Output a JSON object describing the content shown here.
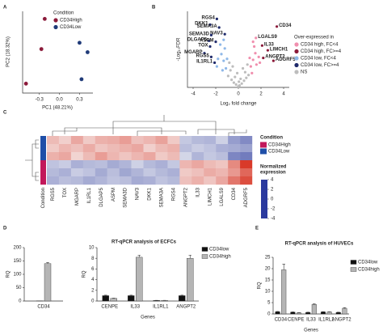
{
  "chart_data": [
    {
      "type": "scatter",
      "panel": "A",
      "xlabel": "PC1 (48.21%)",
      "ylabel": "PC2 (18.32%)",
      "legend_title": "Condition",
      "xlim": [
        -0.55,
        0.5
      ],
      "ylim": [
        -0.6,
        0.7
      ],
      "xticks": [
        -0.3,
        {
          "value": 0,
          "label": "0.0"
        },
        0.3
      ],
      "series": [
        {
          "name": "CD34High",
          "color": "#8b1a3a",
          "x": [
            -0.5,
            -0.22,
            -0.27
          ],
          "values": [
            -0.45,
            0.58,
            0.1
          ]
        },
        {
          "name": "CD34Low",
          "color": "#1f3a78",
          "x": [
            0.3,
            0.42,
            0.33
          ],
          "values": [
            0.2,
            0.05,
            -0.38
          ]
        }
      ]
    },
    {
      "type": "scatter",
      "panel": "B",
      "xlabel": "Log₂ fold change",
      "ylabel": "-Log₁₀FDR",
      "legend_title": "Over-expressed in",
      "xlim": [
        -4.5,
        4.5
      ],
      "ylim": [
        0,
        8
      ],
      "xticks": [
        -4,
        -2,
        0,
        2,
        4
      ],
      "series": [
        {
          "name": "CD34 high, FC<4",
          "color": "#f08fae",
          "x": [
            1.1,
            1.3,
            1.5,
            1.2,
            1.8,
            1.4,
            1.0,
            1.6,
            1.9,
            1.3,
            1.55
          ],
          "values": [
            2.2,
            2.9,
            3.6,
            1.5,
            3.2,
            4.3,
            3.1,
            2.4,
            2.6,
            4.8,
            5.2
          ],
          "labels": [
            null,
            null,
            null,
            null,
            null,
            null,
            null,
            null,
            null,
            null,
            "LGALS9"
          ]
        },
        {
          "name": "CD34 high, FC>=4",
          "color": "#8b1a3a",
          "x": [
            3.4,
            2.1,
            2.6,
            2.2,
            3.1
          ],
          "values": [
            6.4,
            4.4,
            3.9,
            3.1,
            2.8
          ],
          "labels": [
            "CD34",
            "IL33",
            "LIMCH1",
            "ANGPT2",
            "ADGRF5"
          ]
        },
        {
          "name": "CD34 low, FC<4",
          "color": "#8fb8e8",
          "x": [
            -1.1,
            -1.3,
            -1.5,
            -1.2,
            -1.8,
            -1.4,
            -1.0,
            -1.6,
            -1.9,
            -1.3
          ],
          "values": [
            2.0,
            2.8,
            3.5,
            4.1,
            3.0,
            1.8,
            3.0,
            4.5,
            2.2,
            5.0
          ],
          "labels": [
            null,
            null,
            null,
            null,
            null,
            null,
            null,
            null,
            null,
            null
          ]
        },
        {
          "name": "CD34 low, FC>=4",
          "color": "#1f2a6b",
          "x": [
            -1.9,
            -2.5,
            -1.7,
            -1.2,
            -2.4,
            -2.6,
            -2.0,
            -2.5,
            -3.0,
            -2.4,
            -2.1
          ],
          "values": [
            7.2,
            6.6,
            6.3,
            5.6,
            5.5,
            4.9,
            4.8,
            4.3,
            3.6,
            3.2,
            2.6
          ],
          "labels": [
            "RGS4",
            "DKK1",
            "SEMA3A",
            "NAV3",
            "SEMA3D",
            "DLGAP5",
            "ASPM",
            "TOX",
            "MGARP",
            "RGS5",
            "IL1RL1"
          ]
        },
        {
          "name": "NS",
          "color": "#bdbdbd",
          "x": [
            -0.9,
            -0.6,
            -0.4,
            -0.2,
            0,
            0.1,
            0.3,
            0.5,
            0.7,
            0.9,
            -0.7,
            -0.3,
            0.2,
            0.6,
            -0.5,
            0.4,
            -0.1,
            0.8,
            -0.8,
            0.05
          ],
          "values": [
            1.2,
            0.8,
            0.5,
            0.3,
            0.1,
            0.2,
            0.4,
            0.7,
            1.0,
            1.3,
            1.8,
            1.1,
            0.9,
            1.6,
            2.2,
            2.0,
            1.5,
            2.4,
            2.6,
            0.6
          ],
          "labels": [
            null,
            null,
            null,
            null,
            null,
            null,
            null,
            null,
            null,
            null,
            null,
            null,
            null,
            null,
            null,
            null,
            null,
            null,
            null,
            null
          ]
        }
      ]
    },
    {
      "type": "heatmap",
      "panel": "C",
      "condition_label": "Condition",
      "columns": [
        "RGS5",
        "TOX",
        "MGARP",
        "IL1RL1",
        "DLGAP5",
        "ASPM",
        "SEMA3D",
        "NAV3",
        "DKK1",
        "SEMA3A",
        "RGS4",
        "ANGPT2",
        "IL33",
        "LIMCH1",
        "LGALS9",
        "CD34",
        "ADGRF5"
      ],
      "row_conditions": [
        "CD34Low",
        "CD34Low",
        "CD34Low",
        "CD34High",
        "CD34High",
        "CD34High"
      ],
      "series": [
        {
          "name": "CD34High",
          "color": "#c2185b"
        },
        {
          "name": "CD34Low",
          "color": "#1f4fa8"
        }
      ],
      "colorbar_title": [
        "Normalized",
        "expression"
      ],
      "clim": [
        -4,
        4
      ],
      "cticks": [
        4,
        2,
        0,
        -2,
        -4
      ],
      "colormap": [
        "#2b3a9e",
        "#f7f7f7",
        "#d7301f"
      ],
      "values": [
        [
          1.2,
          0.8,
          1.6,
          0.9,
          1.4,
          1.5,
          1.8,
          1.1,
          1.3,
          1.7,
          0.9,
          -1.0,
          -1.3,
          -1.4,
          -0.8,
          -1.9,
          -2.3
        ],
        [
          0.9,
          1.3,
          1.1,
          1.5,
          1.0,
          1.2,
          1.4,
          1.6,
          0.8,
          1.2,
          1.4,
          -1.2,
          -0.9,
          -1.1,
          -1.5,
          -1.6,
          -1.8
        ],
        [
          1.4,
          1.6,
          0.7,
          1.2,
          1.8,
          1.3,
          1.0,
          1.3,
          1.6,
          0.9,
          1.2,
          -0.7,
          -1.4,
          -1.0,
          -1.2,
          -2.4,
          -2.6
        ],
        [
          -1.1,
          -0.9,
          -1.5,
          -1.3,
          -1.2,
          -1.6,
          -1.4,
          -0.8,
          -1.3,
          -1.5,
          -1.0,
          1.3,
          1.6,
          1.2,
          1.0,
          2.2,
          3.8
        ],
        [
          -1.3,
          -1.5,
          -0.9,
          -1.1,
          -1.6,
          -1.2,
          -1.7,
          -1.4,
          -1.0,
          -1.3,
          -1.5,
          0.9,
          1.1,
          1.5,
          1.3,
          1.9,
          2.9
        ],
        [
          -1.5,
          -1.2,
          -1.3,
          -1.6,
          -1.4,
          -1.1,
          -1.2,
          -1.6,
          -1.5,
          -1.1,
          -1.3,
          1.1,
          1.4,
          1.0,
          1.6,
          2.6,
          3.4
        ]
      ]
    },
    {
      "type": "bar",
      "panel": "D",
      "title": "RT-qPCR analysis of ECFCs",
      "ylabel": "RQ",
      "categories": [
        "CD34"
      ],
      "ylim": [
        0,
        200
      ],
      "yticks": [
        0,
        50,
        100,
        150,
        200
      ],
      "series": [
        {
          "color": "#111111",
          "values": [
            0.6
          ],
          "errors": [
            0.1
          ]
        },
        {
          "color": "#b5b5b5",
          "values": [
            140
          ],
          "errors": [
            4
          ]
        }
      ]
    },
    {
      "type": "bar",
      "xlabel": "Genes",
      "ylabel": "RQ",
      "categories": [
        "CENPE",
        "IL33",
        "IL1RL1",
        "ANGPT2"
      ],
      "ylim": [
        0,
        10
      ],
      "yticks": [
        0,
        2,
        4,
        6,
        8,
        10
      ],
      "series": [
        {
          "name": "CD34low",
          "color": "#111111",
          "values": [
            1.0,
            1.0,
            0.1,
            1.0
          ],
          "errors": [
            0.1,
            0.1,
            0.02,
            0.1
          ]
        },
        {
          "name": "CD34high",
          "color": "#b5b5b5",
          "values": [
            0.5,
            8.2,
            0.1,
            8.0
          ],
          "errors": [
            0.05,
            0.4,
            0.02,
            0.6
          ]
        }
      ]
    },
    {
      "type": "bar",
      "panel": "E",
      "title": "RT-qPCR analysis of HUVECs",
      "xlabel": "Genes",
      "ylabel": "RQ",
      "categories": [
        "CD34",
        "CENPE",
        "IL33",
        "IL1RL1",
        "ANGPT2"
      ],
      "ylim": [
        0,
        25
      ],
      "yticks": [
        0,
        5,
        10,
        15,
        20,
        25
      ],
      "series": [
        {
          "name": "CD34low",
          "color": "#111111",
          "values": [
            1.0,
            0.8,
            0.7,
            0.9,
            0.7
          ],
          "errors": [
            0.1,
            0.1,
            0.1,
            0.1,
            0.1
          ]
        },
        {
          "name": "CD34high",
          "color": "#b5b5b5",
          "values": [
            19.5,
            0.5,
            4.2,
            0.9,
            2.5
          ],
          "errors": [
            2.5,
            0.1,
            0.3,
            0.1,
            0.3
          ]
        }
      ]
    }
  ]
}
